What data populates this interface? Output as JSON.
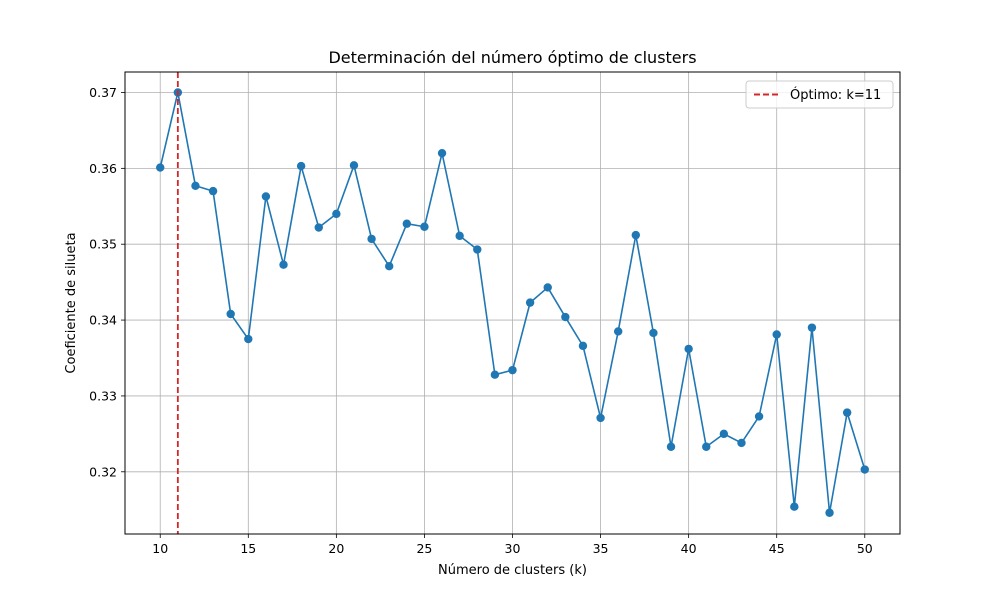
{
  "chart_data": {
    "type": "line",
    "title": "Determinación del número óptimo de clusters",
    "xlabel": "Número de clusters (k)",
    "ylabel": "Coeficiente de silueta",
    "xlim": [
      8,
      52
    ],
    "ylim": [
      0.3118,
      0.3727
    ],
    "xticks": [
      10,
      15,
      20,
      25,
      30,
      35,
      40,
      45,
      50
    ],
    "yticks": [
      0.32,
      0.33,
      0.34,
      0.35,
      0.36,
      0.37
    ],
    "xtick_labels": [
      "10",
      "15",
      "20",
      "25",
      "30",
      "35",
      "40",
      "45",
      "50"
    ],
    "ytick_labels": [
      "0.32",
      "0.33",
      "0.34",
      "0.35",
      "0.36",
      "0.37"
    ],
    "grid": true,
    "legend_position": "top-right",
    "series": [
      {
        "color": "#1f77b4",
        "marker": "circle",
        "x": [
          10,
          11,
          12,
          13,
          14,
          15,
          16,
          17,
          18,
          19,
          20,
          21,
          22,
          23,
          24,
          25,
          26,
          27,
          28,
          29,
          30,
          31,
          32,
          33,
          34,
          35,
          36,
          37,
          38,
          39,
          40,
          41,
          42,
          43,
          44,
          45,
          46,
          47,
          48,
          49,
          50
        ],
        "y": [
          0.3601,
          0.37,
          0.3577,
          0.357,
          0.3408,
          0.3375,
          0.3563,
          0.3473,
          0.3603,
          0.3522,
          0.354,
          0.3604,
          0.3507,
          0.3471,
          0.3527,
          0.3523,
          0.362,
          0.3511,
          0.3493,
          0.3328,
          0.3334,
          0.3423,
          0.3443,
          0.3404,
          0.3366,
          0.3271,
          0.3385,
          0.3512,
          0.3383,
          0.3233,
          0.3362,
          0.3233,
          0.325,
          0.3238,
          0.3273,
          0.3381,
          0.3154,
          0.339,
          0.3146,
          0.3278,
          0.3203
        ]
      }
    ],
    "reference_lines": [
      {
        "orientation": "vertical",
        "x": 11,
        "color": "#d62728",
        "style": "dashed",
        "name": "Óptimo: k=11"
      }
    ]
  }
}
